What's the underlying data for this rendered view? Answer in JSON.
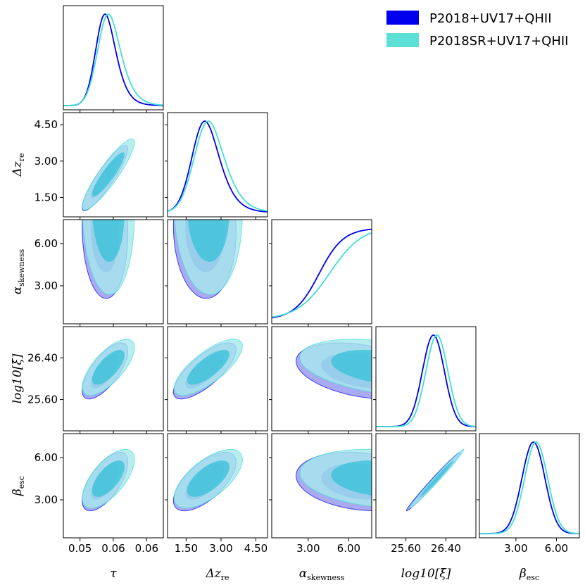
{
  "chart_data": {
    "type": "corner",
    "legend": {
      "position": "top-right",
      "entries": [
        {
          "label": "P2018+UV17+QHII",
          "color": "#0000ee"
        },
        {
          "label": "P2018SR+UV17+QHII",
          "color": "#40e0d0"
        }
      ]
    },
    "parameters": [
      {
        "key": "tau",
        "xlabel": "τ",
        "ylabel": "",
        "ticks": [
          "0.05",
          "0.06",
          "0.06"
        ],
        "range": [
          0.045,
          0.075
        ]
      },
      {
        "key": "dz",
        "xlabel": "Δz",
        "xlabel_sub": "re",
        "ylabel": "Δz",
        "ylabel_sub": "re",
        "ticks": [
          "1.50",
          "3.00",
          "4.50"
        ],
        "range": [
          0.7,
          5.0
        ]
      },
      {
        "key": "alpha",
        "xlabel": "α",
        "xlabel_sub": "skewness",
        "ylabel": "α",
        "ylabel_sub": "skewness",
        "ticks": [
          "3.00",
          "6.00"
        ],
        "range": [
          0.3,
          7.7
        ]
      },
      {
        "key": "xi",
        "xlabel": "log10[ξ̇]",
        "ylabel": "log10[ξ̇]",
        "ticks": [
          "25.60",
          "26.40"
        ],
        "range": [
          25.0,
          27.0
        ]
      },
      {
        "key": "beta",
        "xlabel": "β",
        "xlabel_sub": "esc",
        "ylabel": "β",
        "ylabel_sub": "esc",
        "ticks": [
          "3.00",
          "6.00"
        ],
        "range": [
          0.3,
          7.7
        ]
      }
    ],
    "series": [
      {
        "name": "P2018+UV17+QHII",
        "color": "#0000ee",
        "means": [
          0.0575,
          2.3,
          7.0,
          26.15,
          4.3
        ],
        "stds": [
          0.0028,
          0.55,
          2.0,
          0.22,
          0.85
        ]
      },
      {
        "name": "P2018SR+UV17+QHII",
        "color": "#40e0d0",
        "means": [
          0.0585,
          2.45,
          8.5,
          26.22,
          4.5
        ],
        "stds": [
          0.0032,
          0.6,
          2.5,
          0.22,
          0.85
        ]
      }
    ],
    "correlations": {
      "tau_dz": 0.9,
      "tau_xi": 0.7,
      "tau_beta": 0.65,
      "dz_xi": 0.75,
      "dz_beta": 0.65,
      "xi_beta": 0.99,
      "alpha_tau": -0.05,
      "alpha_dz": -0.05,
      "alpha_xi": -0.35,
      "alpha_beta": -0.2
    },
    "contour_levels": [
      "68%",
      "95%"
    ]
  }
}
